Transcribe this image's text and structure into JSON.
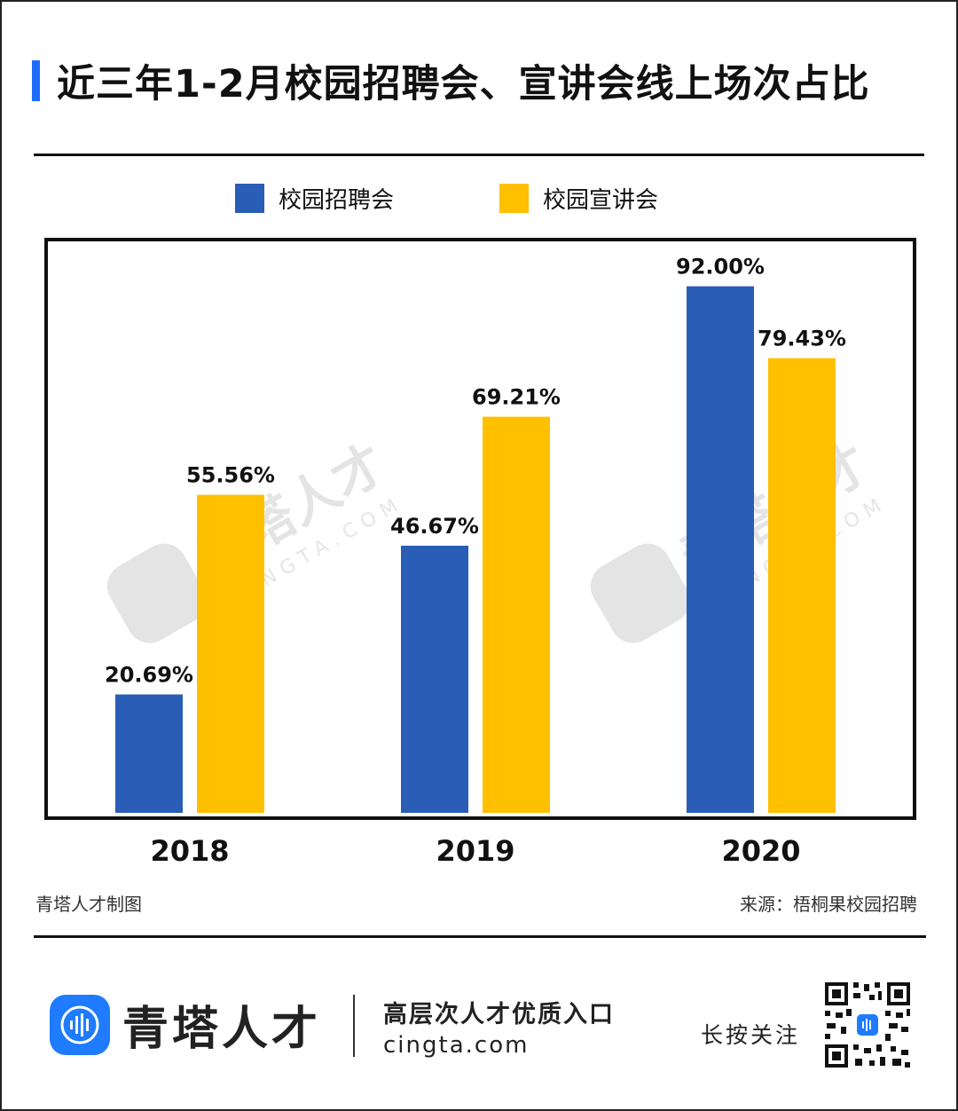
{
  "title": "近三年1-2月校园招聘会、宣讲会线上场次占比",
  "legend": [
    {
      "label": "校园招聘会",
      "color": "#2a5db5"
    },
    {
      "label": "校园宣讲会",
      "color": "#ffc000"
    }
  ],
  "footnote_left": "青塔人才制图",
  "footnote_right": "来源：梧桐果校园招聘",
  "watermark": {
    "text": "青塔人才",
    "sub": "CINGTA.COM"
  },
  "brand": {
    "name": "青塔人才",
    "slogan": "高层次人才优质入口",
    "url": "cingta.com",
    "follow": "长按关注",
    "logo_icon": "soundwave-icon",
    "qr_icon": "qr-code-icon"
  },
  "chart_data": {
    "type": "bar",
    "categories": [
      "2018",
      "2019",
      "2020"
    ],
    "series": [
      {
        "name": "校园招聘会",
        "values": [
          20.69,
          46.67,
          92.0
        ],
        "labels": [
          "20.69%",
          "46.67%",
          "92.00%"
        ],
        "color": "#2a5db5"
      },
      {
        "name": "校园宣讲会",
        "values": [
          55.56,
          69.21,
          79.43
        ],
        "labels": [
          "55.56%",
          "69.21%",
          "79.43%"
        ],
        "color": "#ffc000"
      }
    ],
    "title": "近三年1-2月校园招聘会、宣讲会线上场次占比",
    "xlabel": "",
    "ylabel": "",
    "ylim": [
      0,
      100
    ],
    "grid": false,
    "legend_position": "top"
  }
}
